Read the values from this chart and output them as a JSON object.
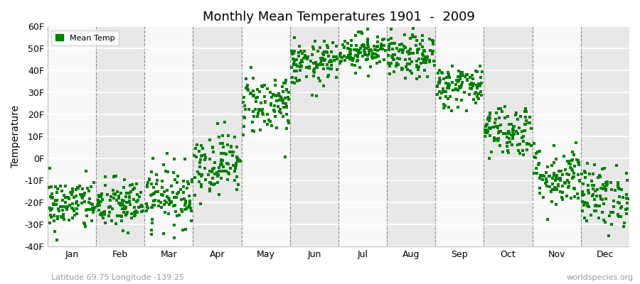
{
  "title": "Monthly Mean Temperatures 1901  -  2009",
  "ylabel": "Temperature",
  "xlabel_labels": [
    "Jan",
    "Feb",
    "Mar",
    "Apr",
    "May",
    "Jun",
    "Jul",
    "Aug",
    "Sep",
    "Oct",
    "Nov",
    "Dec"
  ],
  "ytick_labels": [
    "-40F",
    "-30F",
    "-20F",
    "-10F",
    "0F",
    "10F",
    "20F",
    "30F",
    "40F",
    "50F",
    "60F"
  ],
  "ytick_values": [
    -40,
    -30,
    -20,
    -10,
    0,
    10,
    20,
    30,
    40,
    50,
    60
  ],
  "ylim": [
    -40,
    60
  ],
  "dot_color": "#008000",
  "bg_color": "#ffffff",
  "plot_bg_color": "#f0f0f0",
  "band_color_light": "#f8f8f8",
  "band_color_dark": "#e8e8e8",
  "legend_label": "Mean Temp",
  "subtitle_left": "Latitude 69.75 Longitude -139.25",
  "subtitle_right": "worldspecies.org",
  "num_years": 109,
  "monthly_means": [
    -21,
    -21,
    -17,
    -2,
    25,
    43,
    49,
    46,
    33,
    13,
    -8,
    -17
  ],
  "monthly_stds": [
    6,
    6,
    7,
    7,
    7,
    5,
    4,
    5,
    5,
    6,
    7,
    7
  ]
}
